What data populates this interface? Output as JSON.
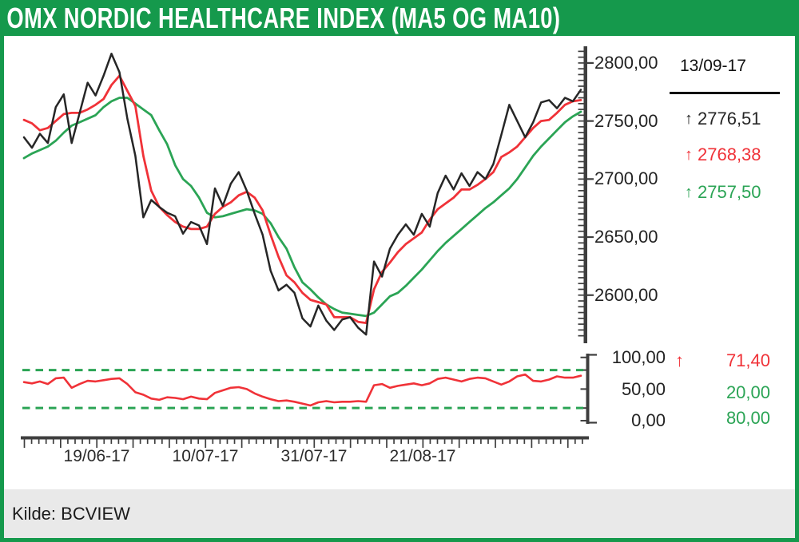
{
  "header": {
    "title": "OMX NORDIC HEALTHCARE INDEX (MA5 OG MA10)"
  },
  "footer": {
    "source_label": "Kilde: BCVIEW"
  },
  "icons": {
    "up_arrow": "↑"
  },
  "colors": {
    "accent_green": "#15994C",
    "line_black": "#262626",
    "line_red": "#F03238",
    "line_green": "#2BA455",
    "axis_gray": "#3E3E3E",
    "footer_bg": "#E9E9E9"
  },
  "chart_data": [
    {
      "id": "price_panel",
      "type": "line",
      "title": "OMX NORDIC HEALTHCARE INDEX (MA5 OG MA10)",
      "grid": false,
      "legend_position": "right",
      "x_axis": {
        "tick_labels": [
          "19/06-17",
          "10/07-17",
          "31/07-17",
          "21/08-17"
        ],
        "minor_ticks": "daily",
        "major_ticks": "weekly"
      },
      "y_axis": {
        "position": "right",
        "range": [
          2562,
          2813
        ],
        "ticks": [
          2800,
          2750,
          2700,
          2650,
          2600
        ],
        "tick_labels": [
          "2800,00",
          "2750,00",
          "2700,00",
          "2650,00",
          "2600,00"
        ]
      },
      "legend": {
        "date": "13/09-17",
        "items": [
          {
            "name": "index",
            "value_label": "2776,51",
            "value": 2776.51,
            "color": "#262626"
          },
          {
            "name": "ma5",
            "value_label": "2768,38",
            "value": 2768.38,
            "color": "#F03238"
          },
          {
            "name": "ma10",
            "value_label": "2757,50",
            "value": 2757.5,
            "color": "#2BA455"
          }
        ]
      },
      "series": [
        {
          "name": "index",
          "color": "#262626",
          "values": [
            2736,
            2727,
            2739,
            2731,
            2762,
            2773,
            2731,
            2757,
            2783,
            2772,
            2789,
            2808,
            2792,
            2752,
            2720,
            2667,
            2682,
            2676,
            2671,
            2668,
            2653,
            2663,
            2660,
            2644,
            2692,
            2677,
            2696,
            2706,
            2690,
            2670,
            2652,
            2621,
            2604,
            2609,
            2602,
            2580,
            2573,
            2591,
            2578,
            2570,
            2579,
            2581,
            2572,
            2566,
            2629,
            2616,
            2640,
            2652,
            2661,
            2652,
            2670,
            2659,
            2688,
            2703,
            2691,
            2705,
            2694,
            2706,
            2700,
            2713,
            2738,
            2764,
            2750,
            2736,
            2749,
            2766,
            2768,
            2761,
            2770,
            2767,
            2777
          ]
        },
        {
          "name": "ma5",
          "color": "#F03238",
          "values": [
            2751,
            2748,
            2742,
            2744,
            2750,
            2756,
            2757,
            2757,
            2760,
            2764,
            2769,
            2781,
            2789,
            2776,
            2763,
            2720,
            2690,
            2676,
            2669,
            2663,
            2659,
            2657,
            2657,
            2659,
            2670,
            2676,
            2680,
            2686,
            2689,
            2684,
            2673,
            2652,
            2633,
            2617,
            2611,
            2602,
            2596,
            2594,
            2592,
            2581,
            2581,
            2581,
            2577,
            2576,
            2605,
            2620,
            2628,
            2637,
            2644,
            2649,
            2654,
            2665,
            2674,
            2679,
            2684,
            2691,
            2691,
            2695,
            2700,
            2706,
            2719,
            2723,
            2728,
            2736,
            2744,
            2750,
            2751,
            2757,
            2764,
            2767,
            2768
          ]
        },
        {
          "name": "ma10",
          "color": "#2BA455",
          "values": [
            2718,
            2722,
            2725,
            2728,
            2733,
            2740,
            2746,
            2749,
            2752,
            2755,
            2762,
            2767,
            2770,
            2770,
            2765,
            2760,
            2755,
            2742,
            2730,
            2712,
            2700,
            2694,
            2684,
            2671,
            2667,
            2668,
            2670,
            2672,
            2674,
            2673,
            2670,
            2662,
            2650,
            2640,
            2624,
            2611,
            2605,
            2598,
            2592,
            2588,
            2585,
            2584,
            2583,
            2582,
            2585,
            2592,
            2599,
            2602,
            2608,
            2615,
            2622,
            2630,
            2638,
            2645,
            2651,
            2657,
            2663,
            2669,
            2675,
            2680,
            2686,
            2692,
            2700,
            2710,
            2720,
            2728,
            2735,
            2742,
            2749,
            2754,
            2758
          ]
        }
      ]
    },
    {
      "id": "rsi_panel",
      "type": "line",
      "grid": false,
      "y_axis": {
        "position": "right",
        "range": [
          0,
          100
        ],
        "ticks": [
          100,
          50,
          0
        ],
        "tick_labels": [
          "100,00",
          "50,00",
          "0,00"
        ]
      },
      "thresholds": [
        {
          "value": 80,
          "color": "#2BA455",
          "style": "dashed"
        },
        {
          "value": 20,
          "color": "#2BA455",
          "style": "dashed"
        }
      ],
      "legend": {
        "items": [
          {
            "name": "rsi",
            "value_label": "71,40",
            "value": 71.4,
            "color": "#F03238"
          },
          {
            "name": "lower_threshold",
            "value_label": "20,00",
            "value": 20.0,
            "color": "#2BA455"
          },
          {
            "name": "upper_threshold",
            "value_label": "80,00",
            "value": 80.0,
            "color": "#2BA455"
          }
        ]
      },
      "series": [
        {
          "name": "rsi",
          "color": "#F03238",
          "values": [
            61,
            59,
            62,
            58,
            67,
            68,
            52,
            58,
            63,
            62,
            64,
            66,
            67,
            58,
            45,
            41,
            35,
            33,
            37,
            36,
            34,
            38,
            35,
            34,
            44,
            48,
            52,
            53,
            50,
            43,
            38,
            34,
            31,
            32,
            30,
            27,
            24,
            29,
            31,
            29,
            30,
            30,
            31,
            30,
            56,
            58,
            52,
            55,
            57,
            59,
            56,
            59,
            66,
            68,
            65,
            62,
            66,
            68,
            67,
            62,
            57,
            62,
            70,
            73,
            63,
            62,
            65,
            70,
            68,
            68,
            71
          ]
        }
      ]
    }
  ]
}
